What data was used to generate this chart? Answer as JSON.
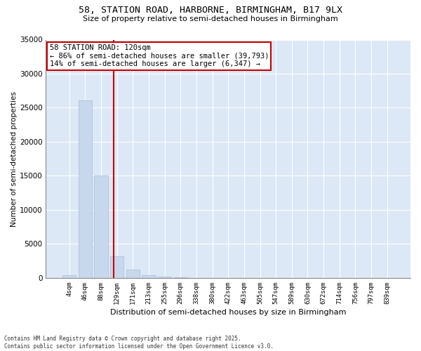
{
  "title_line1": "58, STATION ROAD, HARBORNE, BIRMINGHAM, B17 9LX",
  "title_line2": "Size of property relative to semi-detached houses in Birmingham",
  "xlabel": "Distribution of semi-detached houses by size in Birmingham",
  "ylabel": "Number of semi-detached properties",
  "categories": [
    "4sqm",
    "46sqm",
    "88sqm",
    "129sqm",
    "171sqm",
    "213sqm",
    "255sqm",
    "296sqm",
    "338sqm",
    "380sqm",
    "422sqm",
    "463sqm",
    "505sqm",
    "547sqm",
    "589sqm",
    "630sqm",
    "672sqm",
    "714sqm",
    "756sqm",
    "797sqm",
    "839sqm"
  ],
  "values": [
    390,
    26100,
    15050,
    3200,
    1200,
    450,
    200,
    100,
    0,
    0,
    0,
    0,
    0,
    0,
    0,
    0,
    0,
    0,
    0,
    0,
    0
  ],
  "bar_color": "#c8d8ec",
  "bar_edge_color": "#a8bcd8",
  "vline_color": "#cc0000",
  "annotation_box_color": "#cc0000",
  "annotation_text_line1": "58 STATION ROAD: 120sqm",
  "annotation_text_line2": "← 86% of semi-detached houses are smaller (39,793)",
  "annotation_text_line3": "14% of semi-detached houses are larger (6,347) →",
  "ylim": [
    0,
    35000
  ],
  "yticks": [
    0,
    5000,
    10000,
    15000,
    20000,
    25000,
    30000,
    35000
  ],
  "background_color": "#dce8f5",
  "grid_color": "#ffffff",
  "fig_bg_color": "#ffffff",
  "footer_line1": "Contains HM Land Registry data © Crown copyright and database right 2025.",
  "footer_line2": "Contains public sector information licensed under the Open Government Licence v3.0.",
  "figsize": [
    6.0,
    5.0
  ],
  "dpi": 100
}
